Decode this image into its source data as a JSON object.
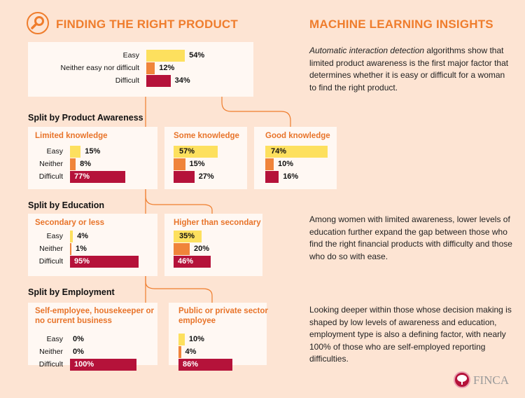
{
  "header": {
    "title": "FINDING THE RIGHT PRODUCT",
    "icon": "search-icon"
  },
  "insights": {
    "title": "MACHINE LEARNING INSIGHTS",
    "p1_italic": "Automatic interaction detection",
    "p1_rest": " algorithms show that limited product awareness is the first major factor that determines whether it is easy or difficult for a woman to find the right product.",
    "p2": "Among women with limited awareness, lower levels of education further expand the gap between those who find the right financial products with difficulty and those who do so with ease.",
    "p3": "Looking deeper within those whose decision making is shaped by low levels of awareness and education, employment type is also a defining factor, with nearly 100% of those who are self-employed reporting difficulties."
  },
  "colors": {
    "easy": "#fde05e",
    "neither": "#f0843a",
    "difficult": "#b5123a",
    "accent": "#ef7d2d"
  },
  "sections": {
    "awareness": "Split by Product Awareness",
    "education": "Split by Education",
    "employment": "Split by Employment"
  },
  "logo": {
    "text": "FINCA"
  },
  "chart_data": [
    {
      "type": "bar",
      "id": "overall",
      "categories": [
        "Easy",
        "Neither easy nor difficult",
        "Difficult"
      ],
      "values": [
        54,
        12,
        34
      ],
      "labels": [
        "54%",
        "12%",
        "34%"
      ],
      "title": ""
    },
    {
      "type": "bar",
      "id": "limited",
      "title": "Limited knowledge",
      "categories": [
        "Easy",
        "Neither",
        "Difficult"
      ],
      "values": [
        15,
        8,
        77
      ],
      "labels": [
        "15%",
        "8%",
        "77%"
      ]
    },
    {
      "type": "bar",
      "id": "some",
      "title": "Some knowledge",
      "categories": [
        "Easy",
        "Neither",
        "Difficult"
      ],
      "values": [
        57,
        15,
        27
      ],
      "labels": [
        "57%",
        "15%",
        "27%"
      ]
    },
    {
      "type": "bar",
      "id": "good",
      "title": "Good knowledge",
      "categories": [
        "Easy",
        "Neither",
        "Difficult"
      ],
      "values": [
        74,
        10,
        16
      ],
      "labels": [
        "74%",
        "10%",
        "16%"
      ]
    },
    {
      "type": "bar",
      "id": "secondary",
      "title": "Secondary or less",
      "categories": [
        "Easy",
        "Neither",
        "Difficult"
      ],
      "values": [
        4,
        1,
        95
      ],
      "labels": [
        "4%",
        "1%",
        "95%"
      ]
    },
    {
      "type": "bar",
      "id": "higher",
      "title": "Higher than secondary",
      "categories": [
        "Easy",
        "Neither",
        "Difficult"
      ],
      "values": [
        35,
        20,
        46
      ],
      "labels": [
        "35%",
        "20%",
        "46%"
      ]
    },
    {
      "type": "bar",
      "id": "self",
      "title": "Self-employee, housekeeper or no current business",
      "categories": [
        "Easy",
        "Neither",
        "Difficult"
      ],
      "values": [
        0,
        0,
        100
      ],
      "labels": [
        "0%",
        "0%",
        "100%"
      ]
    },
    {
      "type": "bar",
      "id": "public",
      "title": "Public or private sector employee",
      "categories": [
        "Easy",
        "Neither",
        "Difficult"
      ],
      "values": [
        10,
        4,
        86
      ],
      "labels": [
        "10%",
        "4%",
        "86%"
      ]
    }
  ]
}
